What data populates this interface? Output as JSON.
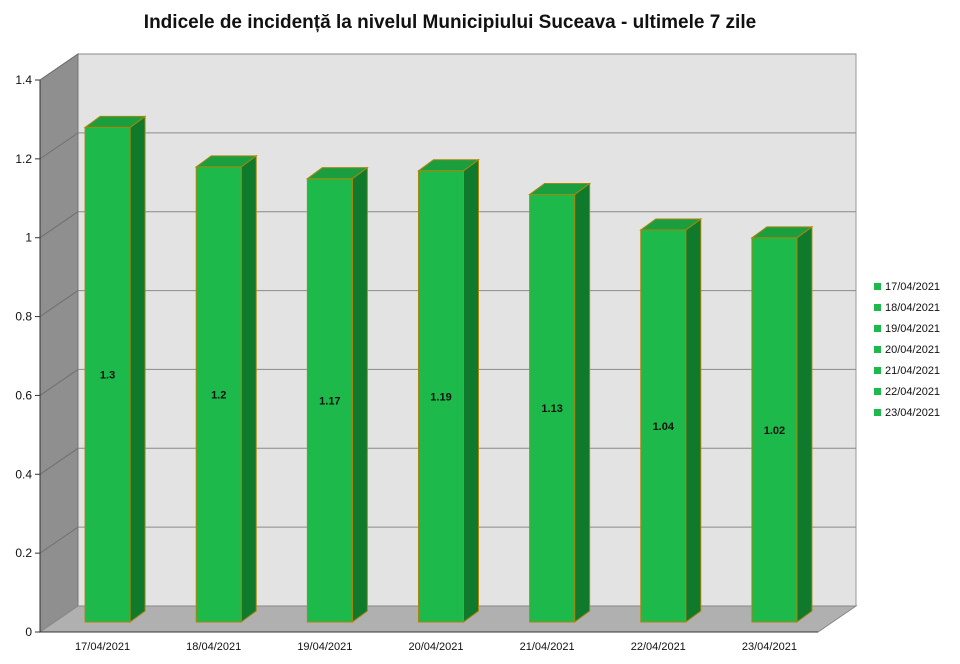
{
  "chart_data": {
    "type": "bar",
    "title": "Indicele de incidență la nivelul Municipiului Suceava - ultimele 7 zile",
    "xlabel": "",
    "ylabel": "",
    "categories": [
      "17/04/2021",
      "18/04/2021",
      "19/04/2021",
      "20/04/2021",
      "21/04/2021",
      "22/04/2021",
      "23/04/2021"
    ],
    "values": [
      1.3,
      1.2,
      1.17,
      1.19,
      1.13,
      1.04,
      1.02
    ],
    "value_labels": [
      "1.3",
      "1.2",
      "1.17",
      "1.19",
      "1.13",
      "1.04",
      "1.02"
    ],
    "ylim": [
      0,
      1.4
    ],
    "yticks": [
      0,
      0.2,
      0.4,
      0.6,
      0.8,
      1,
      1.2,
      1.4
    ],
    "ytick_labels": [
      "0",
      "0.2",
      "0.4",
      "0.6",
      "0.8",
      "1",
      "1.2",
      "1.4"
    ],
    "grid": true,
    "legend": {
      "position": "right",
      "entries": [
        "17/04/2021",
        "18/04/2021",
        "19/04/2021",
        "20/04/2021",
        "21/04/2021",
        "22/04/2021",
        "23/04/2021"
      ]
    },
    "colors": {
      "bar_front": "#1db94a",
      "bar_side": "#0f7a2c",
      "bar_top": "#1a9e3e",
      "bar_outline": "#a8860d",
      "wall": "#e3e3e3",
      "left_wall": "#8f8f8f",
      "floor": "#b0b0b0"
    }
  }
}
